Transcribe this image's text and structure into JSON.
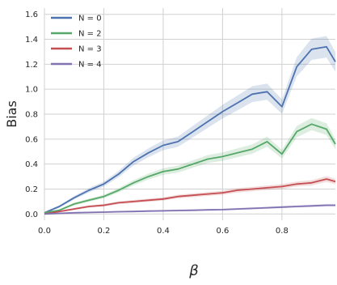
{
  "chart_data": {
    "type": "line",
    "xlabel": "β",
    "ylabel": "Bias",
    "xlim": [
      0.0,
      0.98
    ],
    "ylim": [
      -0.05,
      1.65
    ],
    "xticks": [
      "0.0",
      "0.2",
      "0.4",
      "0.6",
      "0.8"
    ],
    "yticks": [
      "0.0",
      "0.2",
      "0.4",
      "0.6",
      "0.8",
      "1.0",
      "1.2",
      "1.4",
      "1.6"
    ],
    "grid": true,
    "legend_position": "top-left",
    "x": [
      0.0,
      0.05,
      0.1,
      0.15,
      0.2,
      0.25,
      0.3,
      0.35,
      0.4,
      0.45,
      0.5,
      0.55,
      0.6,
      0.65,
      0.7,
      0.75,
      0.8,
      0.85,
      0.9,
      0.95,
      0.98
    ],
    "series": [
      {
        "name": "N = 0",
        "color": "#4c72b0",
        "values": [
          0.01,
          0.06,
          0.13,
          0.19,
          0.24,
          0.32,
          0.42,
          0.49,
          0.55,
          0.58,
          0.66,
          0.74,
          0.82,
          0.89,
          0.96,
          0.98,
          0.86,
          1.18,
          1.32,
          1.34,
          1.22
        ]
      },
      {
        "name": "N = 2",
        "color": "#55a868",
        "values": [
          0.01,
          0.03,
          0.08,
          0.11,
          0.14,
          0.19,
          0.25,
          0.3,
          0.34,
          0.36,
          0.4,
          0.44,
          0.46,
          0.49,
          0.52,
          0.58,
          0.48,
          0.66,
          0.72,
          0.68,
          0.56
        ]
      },
      {
        "name": "N = 3",
        "color": "#c44e52",
        "values": [
          0.0,
          0.02,
          0.04,
          0.06,
          0.07,
          0.09,
          0.1,
          0.11,
          0.12,
          0.14,
          0.15,
          0.16,
          0.17,
          0.19,
          0.2,
          0.21,
          0.22,
          0.24,
          0.25,
          0.28,
          0.26
        ]
      },
      {
        "name": "N = 4",
        "color": "#8172b2",
        "values": [
          0.0,
          0.005,
          0.01,
          0.012,
          0.015,
          0.018,
          0.02,
          0.023,
          0.025,
          0.028,
          0.03,
          0.033,
          0.035,
          0.04,
          0.045,
          0.05,
          0.055,
          0.06,
          0.065,
          0.07,
          0.07
        ]
      }
    ]
  }
}
